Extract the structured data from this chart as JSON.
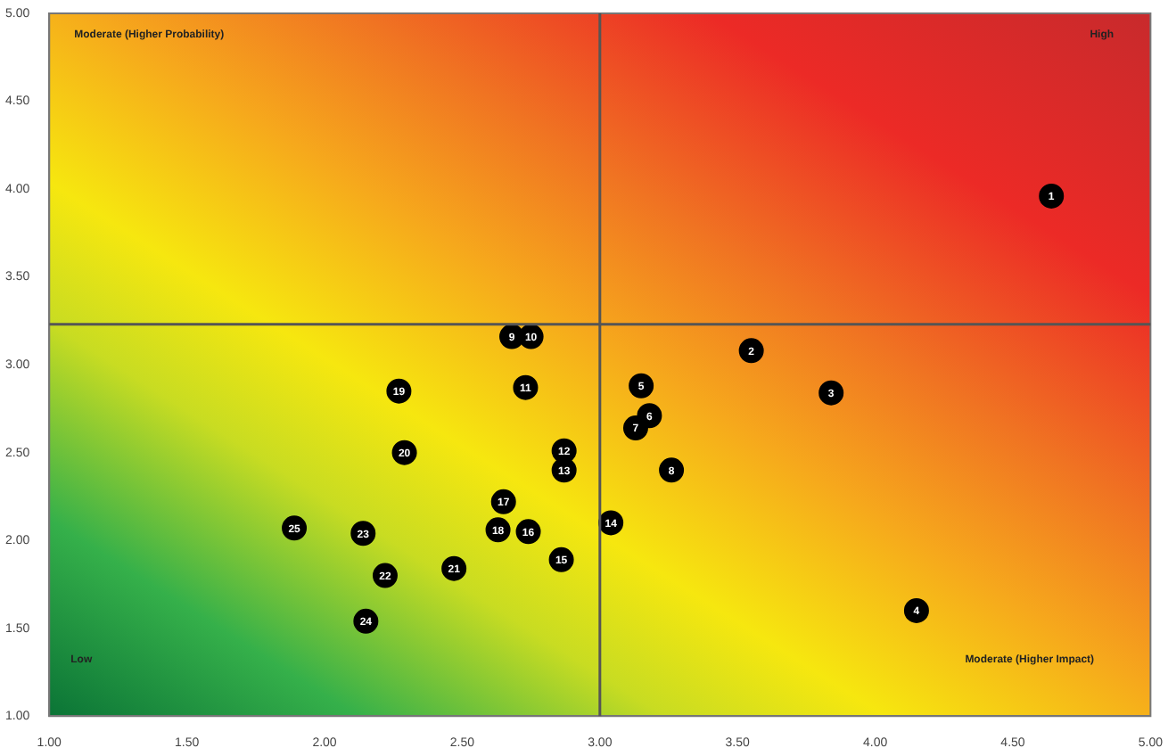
{
  "chart_data": {
    "type": "scatter",
    "x": [
      4.64,
      3.55,
      3.84,
      4.15,
      3.15,
      3.18,
      3.13,
      3.26,
      2.68,
      2.75,
      2.73,
      2.87,
      2.87,
      3.04,
      2.86,
      2.74,
      2.65,
      2.63,
      2.27,
      2.29,
      2.47,
      2.22,
      2.14,
      2.15,
      1.89
    ],
    "values": [
      3.96,
      3.08,
      2.84,
      1.6,
      2.88,
      2.71,
      2.64,
      2.4,
      3.16,
      3.16,
      2.87,
      2.51,
      2.4,
      2.1,
      1.89,
      2.05,
      2.22,
      2.06,
      2.85,
      2.5,
      1.84,
      1.8,
      2.04,
      1.54,
      2.07
    ],
    "color": "#000000",
    "marker": "circle",
    "xlim": [
      1,
      5
    ],
    "ylim": [
      1,
      5
    ],
    "xticks": [
      {
        "value": 1,
        "label": "1.00"
      },
      {
        "value": 1.5,
        "label": "1.50"
      },
      {
        "value": 2,
        "label": "2.00"
      },
      {
        "value": 2.5,
        "label": "2.50"
      },
      {
        "value": 3,
        "label": "3.00"
      },
      {
        "value": 3.5,
        "label": "3.50"
      },
      {
        "value": 4,
        "label": "4.00"
      },
      {
        "value": 4.5,
        "label": "4.50"
      },
      {
        "value": 5,
        "label": "5.00"
      }
    ],
    "yticks": [
      {
        "value": 1,
        "label": "1.00"
      },
      {
        "value": 1.5,
        "label": "1.50"
      },
      {
        "value": 2,
        "label": "2.00"
      },
      {
        "value": 2.5,
        "label": "2.50"
      },
      {
        "value": 3,
        "label": "3.00"
      },
      {
        "value": 3.5,
        "label": "3.50"
      },
      {
        "value": 4,
        "label": "4.00"
      },
      {
        "value": 4.5,
        "label": "4.50"
      },
      {
        "value": 5,
        "label": "5.00"
      }
    ],
    "ref_lines": [
      {
        "axis": "x",
        "value": 3,
        "color": "#555555"
      },
      {
        "axis": "y",
        "value": 3.23,
        "color": "#555555"
      }
    ],
    "annotations": [
      "Moderate (Higher Probability)",
      "High",
      "Low",
      "Moderate (Higher Impact)",
      {
        "text": "1",
        "x": 4.64,
        "y": 3.96
      },
      {
        "text": "2",
        "x": 3.55,
        "y": 3.08
      },
      {
        "text": "3",
        "x": 3.84,
        "y": 2.84
      },
      {
        "text": "4",
        "x": 4.15,
        "y": 1.6
      },
      {
        "text": "5",
        "x": 3.15,
        "y": 2.88
      },
      {
        "text": "6",
        "x": 3.18,
        "y": 2.71
      },
      {
        "text": "7",
        "x": 3.13,
        "y": 2.64
      },
      {
        "text": "8",
        "x": 3.26,
        "y": 2.4
      },
      {
        "text": "9",
        "x": 2.68,
        "y": 3.16
      },
      {
        "text": "10",
        "x": 2.75,
        "y": 3.16
      },
      {
        "text": "11",
        "x": 2.73,
        "y": 2.87
      },
      {
        "text": "12",
        "x": 2.87,
        "y": 2.51
      },
      {
        "text": "13",
        "x": 2.87,
        "y": 2.4
      },
      {
        "text": "14",
        "x": 3.04,
        "y": 2.1
      },
      {
        "text": "15",
        "x": 2.86,
        "y": 1.89
      },
      {
        "text": "16",
        "x": 2.74,
        "y": 2.05
      },
      {
        "text": "17",
        "x": 2.65,
        "y": 2.22
      },
      {
        "text": "18",
        "x": 2.63,
        "y": 2.06
      },
      {
        "text": "19",
        "x": 2.27,
        "y": 2.85
      },
      {
        "text": "20",
        "x": 2.29,
        "y": 2.5
      },
      {
        "text": "21",
        "x": 2.47,
        "y": 1.84
      },
      {
        "text": "22",
        "x": 2.22,
        "y": 1.8
      },
      {
        "text": "23",
        "x": 2.14,
        "y": 2.04
      },
      {
        "text": "24",
        "x": 2.15,
        "y": 1.54
      },
      {
        "text": "25",
        "x": 1.89,
        "y": 2.07
      }
    ],
    "grid": false,
    "legend": false
  }
}
